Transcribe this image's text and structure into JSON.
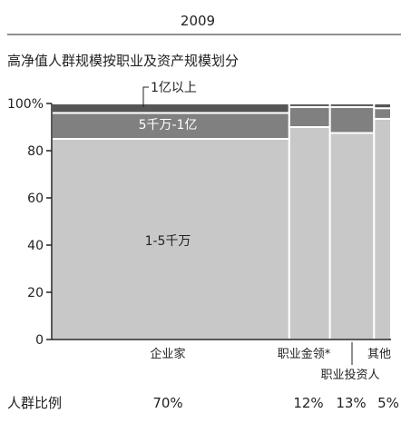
{
  "chart_data": {
    "type": "bar",
    "subtype": "marimekko (variable-width stacked 100% bar)",
    "header": "2009",
    "title": "高净值人群规模按职业及资产规模划分",
    "ylim": [
      0,
      100
    ],
    "yticks": [
      "0",
      "20",
      "40",
      "60",
      "80",
      "100%"
    ],
    "ytick_values": [
      0,
      20,
      40,
      60,
      80,
      100
    ],
    "categories": [
      "企业家",
      "职业金领*",
      "职业投资人",
      "其他"
    ],
    "category_share": [
      70,
      12,
      13,
      5
    ],
    "category_share_labels": [
      "70%",
      "12%",
      "13%",
      "5%"
    ],
    "share_row_label": "人群比例",
    "series": [
      {
        "name": "1-5千万",
        "values": [
          85,
          90,
          87.5,
          93.5
        ]
      },
      {
        "name": "5千万-1亿",
        "values": [
          11,
          8.5,
          11,
          4.5
        ]
      },
      {
        "name": "1亿以上",
        "values": [
          4,
          1.5,
          1.5,
          2
        ]
      }
    ],
    "grid": false,
    "legend": "inline labels"
  },
  "colors": {
    "series": [
      "#c8c8c8",
      "#808080",
      "#555555"
    ],
    "border": "#ffffff",
    "axis": "#222222"
  }
}
